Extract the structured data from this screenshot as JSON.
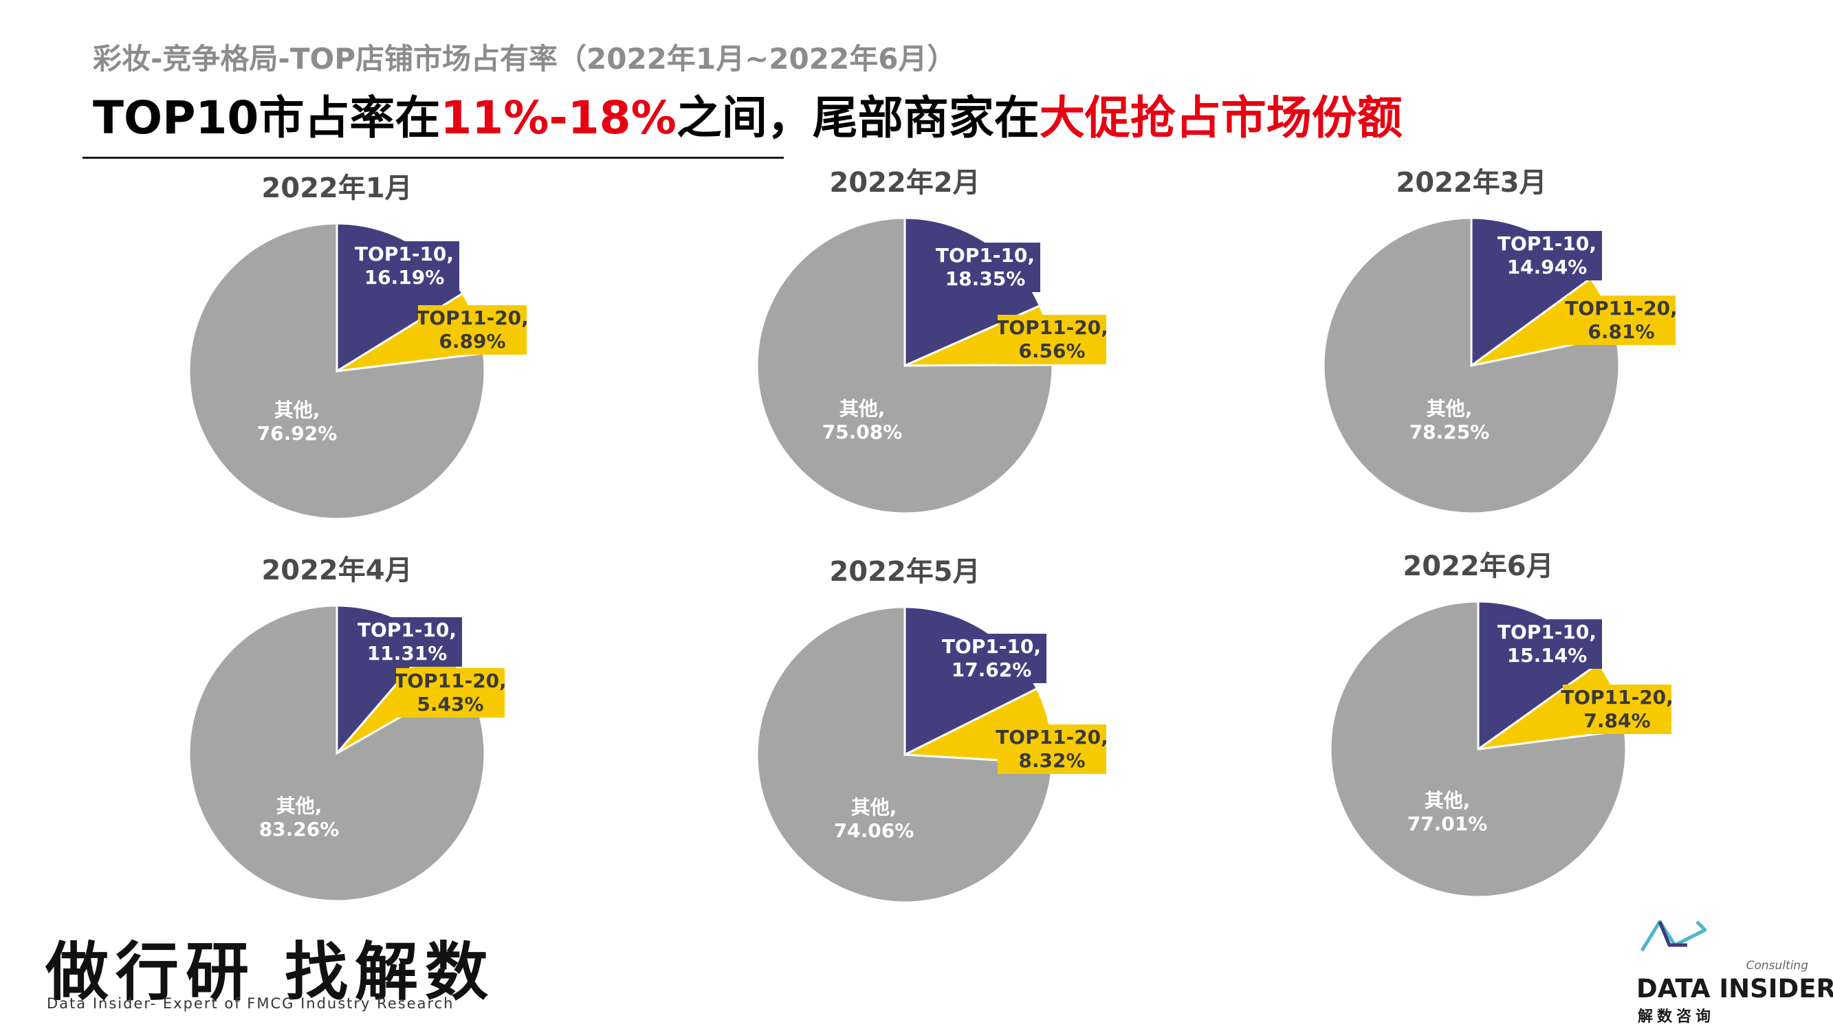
{
  "header": {
    "subtitle": "彩妆-竞争格局-TOP店铺市场占有率（2022年1月~2022年6月）",
    "headline_part1": "TOP10市占率在",
    "headline_hl1": "11%-18%",
    "headline_part2": "之间，尾部商家在",
    "headline_hl2": "大促抢占市场份额"
  },
  "colors": {
    "top1_10": "#433f7f",
    "top11_20": "#f7ca00",
    "other": "#a5a5a5",
    "highlight": "#e60012"
  },
  "chart_data": [
    {
      "type": "pie",
      "title": "2022年1月",
      "categories": [
        "TOP1-10",
        "TOP11-20",
        "其他"
      ],
      "values": [
        16.19,
        6.89,
        76.92
      ],
      "data_labels": [
        "TOP1-10,",
        "16.19%",
        "TOP11-20,",
        "6.89%",
        "其他,",
        "76.92%"
      ]
    },
    {
      "type": "pie",
      "title": "2022年2月",
      "categories": [
        "TOP1-10",
        "TOP11-20",
        "其他"
      ],
      "values": [
        18.35,
        6.56,
        75.08
      ],
      "data_labels": [
        "TOP1-10,",
        "18.35%",
        "TOP11-20,",
        "6.56%",
        "其他,",
        "75.08%"
      ]
    },
    {
      "type": "pie",
      "title": "2022年3月",
      "categories": [
        "TOP1-10",
        "TOP11-20",
        "其他"
      ],
      "values": [
        14.94,
        6.81,
        78.25
      ],
      "data_labels": [
        "TOP1-10,",
        "14.94%",
        "TOP11-20,",
        "6.81%",
        "其他,",
        "78.25%"
      ]
    },
    {
      "type": "pie",
      "title": "2022年4月",
      "categories": [
        "TOP1-10",
        "TOP11-20",
        "其他"
      ],
      "values": [
        11.31,
        5.43,
        83.26
      ],
      "data_labels": [
        "TOP1-10,",
        "11.31%",
        "TOP11-20,",
        "5.43%",
        "其他,",
        "83.26%"
      ]
    },
    {
      "type": "pie",
      "title": "2022年5月",
      "categories": [
        "TOP1-10",
        "TOP11-20",
        "其他"
      ],
      "values": [
        17.62,
        8.32,
        74.06
      ],
      "data_labels": [
        "TOP1-10,",
        "17.62%",
        "TOP11-20,",
        "8.32%",
        "其他,",
        "74.06%"
      ]
    },
    {
      "type": "pie",
      "title": "2022年6月",
      "categories": [
        "TOP1-10",
        "TOP11-20",
        "其他"
      ],
      "values": [
        15.14,
        7.84,
        77.01
      ],
      "data_labels": [
        "TOP1-10,",
        "15.14%",
        "TOP11-20,",
        "7.84%",
        "其他,",
        "77.01%"
      ]
    }
  ],
  "footer": {
    "slogan": "做行研 找解数",
    "slogan_sub": "Data Insider- Expert of FMCG Industry Research",
    "logo_consulting": "Consulting",
    "logo_name": "DATA INSIDER",
    "logo_cn": "解数咨询"
  }
}
